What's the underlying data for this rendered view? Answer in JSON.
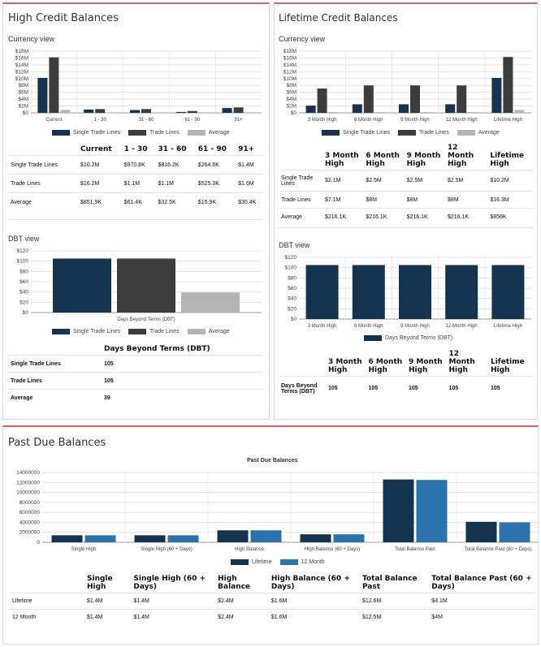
{
  "colors": {
    "single": "#14334f",
    "trade": "#3c3c3c",
    "average": "#b4b4b4",
    "lifetime": "#14334f",
    "month12": "#2b73ad",
    "accent": "#e06060"
  },
  "high_credit": {
    "title": "High Credit Balances",
    "currency_label": "Currency view",
    "dbt_label": "DBT view",
    "currency_table": {
      "headers": [
        "",
        "Current",
        "1 - 30",
        "31 - 60",
        "61 - 90",
        "91+"
      ],
      "rows": [
        {
          "label": "Single Trade Lines",
          "values": [
            "$10.2M",
            "$970.6K",
            "$816.2K",
            "$264.6K",
            "$1.4M"
          ]
        },
        {
          "label": "Trade Lines",
          "values": [
            "$16.2M",
            "$1.1M",
            "$1.1M",
            "$525.3K",
            "$1.6M"
          ]
        },
        {
          "label": "Average",
          "values": [
            "$851.9K",
            "$61.4K",
            "$32.5K",
            "$15.9K",
            "$30.4K"
          ]
        }
      ]
    },
    "dbt_table": {
      "header": "Days Beyond Terms (DBT)",
      "rows": [
        {
          "label": "Single Trade Lines",
          "value": "105"
        },
        {
          "label": "Trade Lines",
          "value": "105"
        },
        {
          "label": "Average",
          "value": "39"
        }
      ]
    }
  },
  "lifetime_credit": {
    "title": "Lifetime  Credit  Balances",
    "currency_label": "Currency view",
    "dbt_label": "DBT view",
    "currency_table": {
      "headers": [
        "",
        "3 Month High",
        "6 Month High",
        "9 Month High",
        "12 Month High",
        "Lifetime High"
      ],
      "rows": [
        {
          "label": "Single Trade Lines",
          "values": [
            "$2.1M",
            "$2.5M",
            "$2.5M",
            "$2.5M",
            "$10.2M"
          ]
        },
        {
          "label": "Trade Lines",
          "values": [
            "$7.1M",
            "$8M",
            "$8M",
            "$8M",
            "$16.3M"
          ]
        },
        {
          "label": "Average",
          "values": [
            "$216.1K",
            "$216.1K",
            "$216.1K",
            "$216.1K",
            "$856K"
          ]
        }
      ]
    },
    "dbt_table": {
      "headers": [
        "",
        "3 Month High",
        "6 Month High",
        "9 Month High",
        "12 Month High",
        "Lifetime High"
      ],
      "rows": [
        {
          "label": "Days Beyond Terms (DBT)",
          "values": [
            "105",
            "105",
            "105",
            "105",
            "105"
          ]
        }
      ]
    }
  },
  "past_due": {
    "title": "Past Due Balances",
    "table": {
      "headers": [
        "",
        "Single High",
        "Single High (60 + Days)",
        "High Balance",
        "High Balance (60 + Days)",
        "Total Balance Past",
        "Total Balance Past (60 + Days)"
      ],
      "rows": [
        {
          "label": "Lifetime",
          "values": [
            "$1.4M",
            "$1.4M",
            "$2.4M",
            "$1.6M",
            "$12.6M",
            "$4.1M"
          ]
        },
        {
          "label": "12 Month",
          "values": [
            "$1.4M",
            "$1.4M",
            "$2.4M",
            "$1.6M",
            "$12.5M",
            "$4M"
          ]
        }
      ]
    }
  },
  "chart_data": [
    {
      "id": "hc_currency",
      "type": "bar",
      "categories": [
        "Current",
        "1 - 30",
        "31 - 60",
        "61 - 90",
        "91+"
      ],
      "series": [
        {
          "name": "Single Trade Lines",
          "values": [
            10.2,
            0.97,
            0.82,
            0.26,
            1.4
          ]
        },
        {
          "name": "Trade Lines",
          "values": [
            16.2,
            1.1,
            1.1,
            0.53,
            1.6
          ]
        },
        {
          "name": "Average",
          "values": [
            0.85,
            0.06,
            0.03,
            0.02,
            0.03
          ]
        }
      ],
      "yticks": [
        "$0",
        "$2M",
        "$4M",
        "$6M",
        "$8M",
        "$10M",
        "$12M",
        "$14M",
        "$16M",
        "$18M"
      ],
      "ylim": [
        0,
        18
      ],
      "grid": true,
      "legend": "bottom"
    },
    {
      "id": "hc_dbt",
      "type": "bar",
      "categories": [
        "Days Beyond Terms (DBT)"
      ],
      "series": [
        {
          "name": "Single Trade Lines",
          "values": [
            105
          ]
        },
        {
          "name": "Trade Lines",
          "values": [
            105
          ]
        },
        {
          "name": "Average",
          "values": [
            39
          ]
        }
      ],
      "yticks": [
        "$0",
        "$20",
        "$40",
        "$60",
        "$80",
        "$100",
        "$120"
      ],
      "ylim": [
        0,
        120
      ],
      "grid": true,
      "legend": "bottom"
    },
    {
      "id": "lc_currency",
      "type": "bar",
      "categories": [
        "3 Month High",
        "6 Month High",
        "9 Month High",
        "12 Month High",
        "Lifetime High"
      ],
      "series": [
        {
          "name": "Single Trade Lines",
          "values": [
            2.1,
            2.5,
            2.5,
            2.5,
            10.2
          ]
        },
        {
          "name": "Trade Lines",
          "values": [
            7.1,
            8,
            8,
            8,
            16.3
          ]
        },
        {
          "name": "Average",
          "values": [
            0.22,
            0.22,
            0.22,
            0.22,
            0.86
          ]
        }
      ],
      "yticks": [
        "$0",
        "$2M",
        "$4M",
        "$6M",
        "$8M",
        "$10M",
        "$12M",
        "$14M",
        "$16M",
        "$18M"
      ],
      "ylim": [
        0,
        18
      ],
      "grid": true,
      "legend": "bottom"
    },
    {
      "id": "lc_dbt",
      "type": "bar",
      "categories": [
        "3 Month High",
        "6 Month High",
        "9 Month High",
        "12 Month High",
        "Lifetime High"
      ],
      "series": [
        {
          "name": "Days Beyond Terms (DBT)",
          "values": [
            105,
            105,
            105,
            105,
            105
          ]
        }
      ],
      "yticks": [
        "$0",
        "$20",
        "$40",
        "$60",
        "$80",
        "$100",
        "$120"
      ],
      "ylim": [
        0,
        120
      ],
      "grid": true,
      "legend": "bottom"
    },
    {
      "id": "past_due",
      "type": "bar",
      "title": "Past Due Balances",
      "categories": [
        "Single High",
        "Single High (60 + Days)",
        "High Balance",
        "High Balance (60 + Days)",
        "Total Balance Past",
        "Total Balance Past (60 + Days)"
      ],
      "series": [
        {
          "name": "Lifetime",
          "values": [
            1400000,
            1400000,
            2400000,
            1600000,
            12600000,
            4100000
          ]
        },
        {
          "name": "12 Month",
          "values": [
            1400000,
            1400000,
            2400000,
            1600000,
            12500000,
            4000000
          ]
        }
      ],
      "yticks": [
        "0",
        "2000000",
        "4000000",
        "6000000",
        "8000000",
        "10000000",
        "12000000",
        "14000000"
      ],
      "ylim": [
        0,
        14000000
      ],
      "grid": true,
      "legend": "bottom"
    }
  ]
}
